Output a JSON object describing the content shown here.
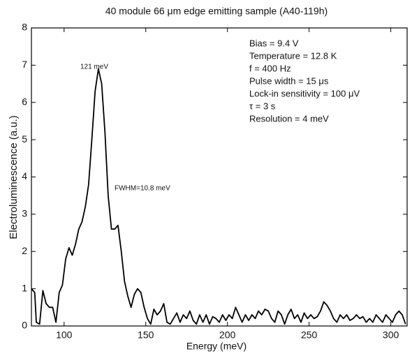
{
  "chart_data": {
    "type": "line",
    "title": "40 module 66 μm edge emitting sample (A40-119h)",
    "x_label": "Energy (meV)",
    "y_label": "Electroluminescence (a.u.)",
    "peak_label": "121 meV",
    "fwhm_label": "FWHM=10.8 meV",
    "conditions": [
      "Bias = 9.4 V",
      "Temperature =  12.8 K",
      "f = 400 Hz",
      "Pulse width = 15 μs",
      "Lock-in sensitivity = 100  μV",
      "τ = 3 s",
      "Resolution = 4 meV"
    ],
    "color": "#000000",
    "x": [
      80,
      82,
      83,
      85,
      87,
      89,
      91,
      93,
      95,
      97,
      99,
      101,
      103,
      105,
      107,
      109,
      111,
      113,
      115,
      117,
      119,
      121,
      123,
      125,
      127,
      129,
      131,
      133,
      135,
      137,
      139,
      141,
      143,
      145,
      147,
      149,
      151,
      153,
      155,
      157,
      159,
      161,
      163,
      165,
      167,
      169,
      171,
      173,
      175,
      177,
      179,
      181,
      183,
      185,
      187,
      189,
      191,
      193,
      195,
      197,
      199,
      201,
      203,
      205,
      207,
      209,
      211,
      213,
      215,
      217,
      219,
      221,
      223,
      225,
      227,
      229,
      231,
      233,
      235,
      237,
      239,
      241,
      243,
      245,
      247,
      249,
      251,
      253,
      255,
      257,
      259,
      261,
      263,
      265,
      267,
      269,
      271,
      273,
      275,
      277,
      279,
      281,
      283,
      285,
      287,
      289,
      291,
      293,
      295,
      297,
      299,
      301,
      303,
      305,
      307,
      309
    ],
    "values": [
      1.0,
      0.9,
      0.1,
      0.05,
      0.95,
      0.6,
      0.5,
      0.5,
      0.1,
      0.9,
      1.1,
      1.8,
      2.1,
      1.9,
      2.2,
      2.6,
      2.8,
      3.2,
      3.8,
      5.0,
      6.3,
      6.9,
      6.5,
      5.2,
      3.5,
      2.6,
      2.6,
      2.7,
      2.0,
      1.2,
      0.8,
      0.5,
      0.85,
      1.0,
      0.9,
      0.5,
      0.2,
      0.05,
      0.45,
      0.3,
      0.4,
      0.6,
      0.1,
      0.05,
      0.2,
      0.35,
      0.1,
      0.3,
      0.2,
      0.4,
      0.15,
      0.05,
      0.3,
      0.1,
      0.3,
      0.05,
      0.25,
      0.2,
      0.1,
      0.3,
      0.15,
      0.3,
      0.2,
      0.5,
      0.3,
      0.1,
      0.3,
      0.15,
      0.3,
      0.2,
      0.4,
      0.3,
      0.45,
      0.4,
      0.2,
      0.1,
      0.4,
      0.3,
      0.05,
      0.3,
      0.45,
      0.2,
      0.3,
      0.1,
      0.35,
      0.2,
      0.3,
      0.2,
      0.25,
      0.4,
      0.65,
      0.55,
      0.4,
      0.2,
      0.1,
      0.3,
      0.2,
      0.3,
      0.15,
      0.2,
      0.3,
      0.2,
      0.25,
      0.1,
      0.2,
      0.1,
      0.3,
      0.2,
      0.1,
      0.3,
      0.2,
      0.1,
      0.3,
      0.4,
      0.3,
      0.05
    ],
    "xlim": [
      80,
      310
    ],
    "ylim": [
      0,
      8
    ],
    "xticks": [
      100,
      150,
      200,
      250,
      300
    ],
    "yticks": [
      0,
      1,
      2,
      3,
      4,
      5,
      6,
      7,
      8
    ]
  }
}
